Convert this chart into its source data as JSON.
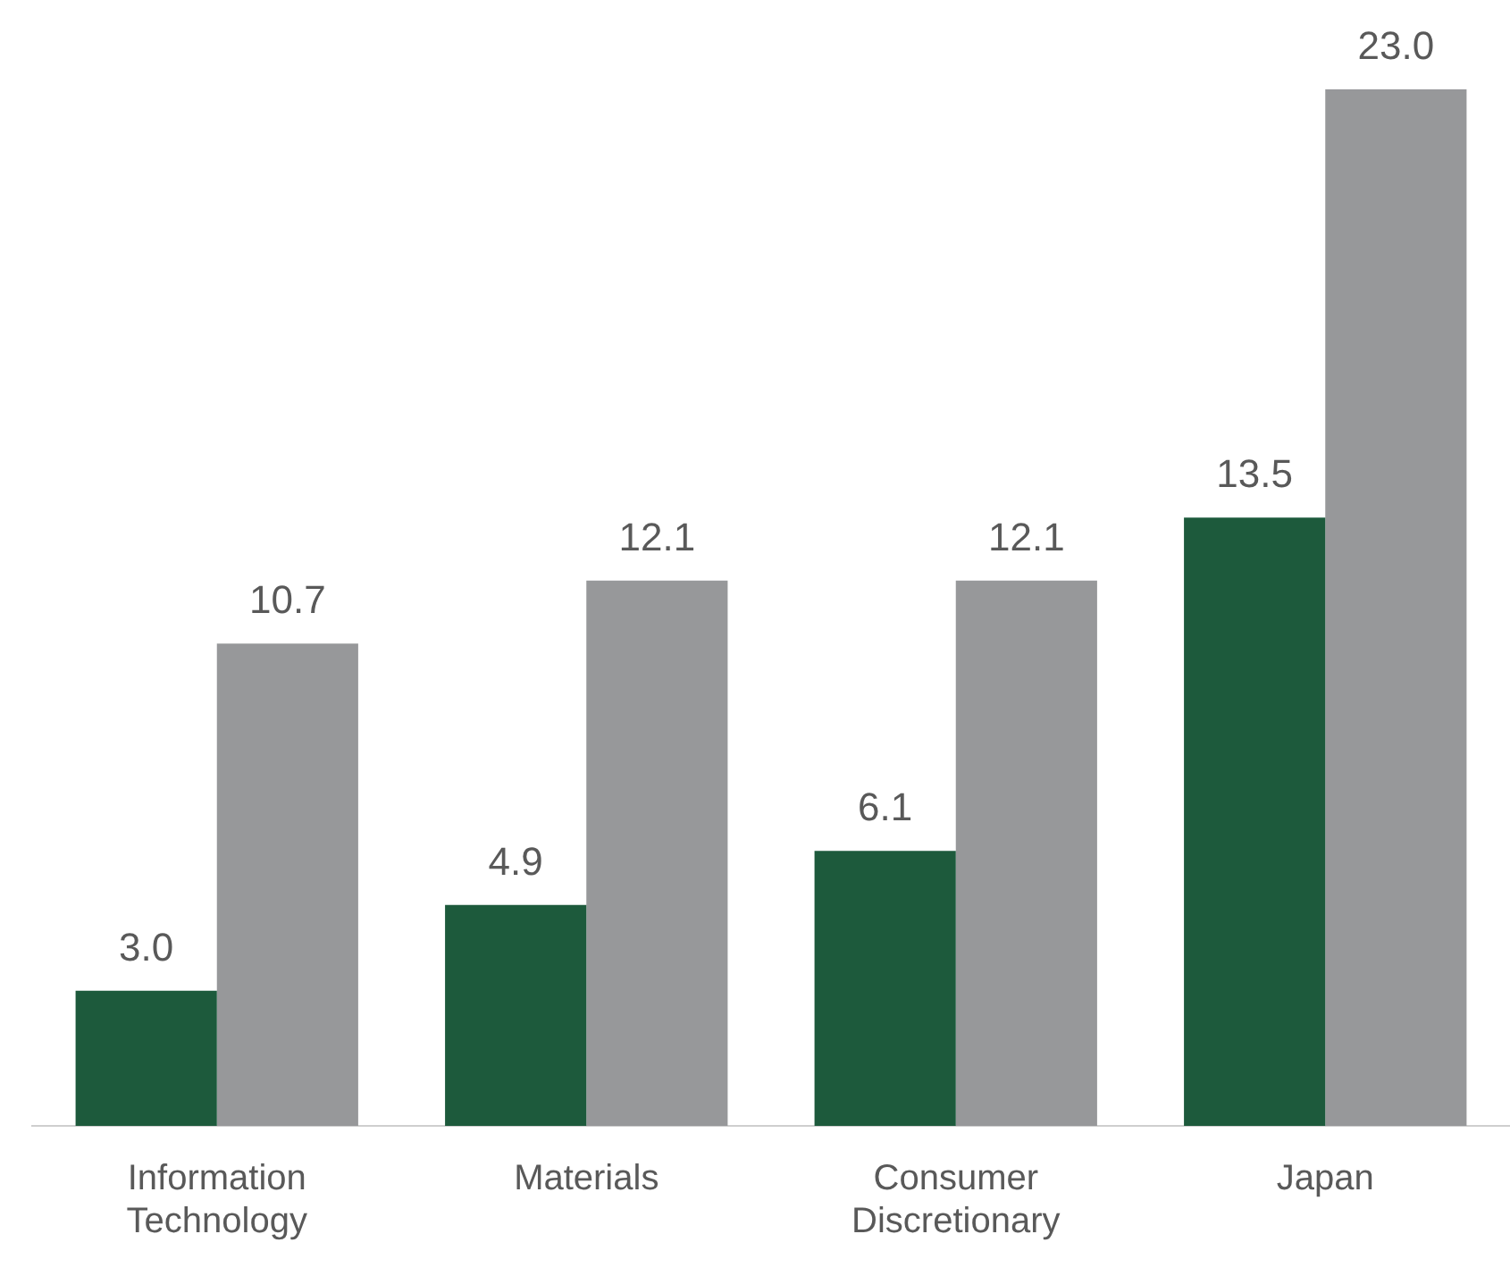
{
  "chart_data": {
    "type": "bar",
    "categories": [
      "Information Technology",
      "Materials",
      "Consumer Discretionary",
      "Japan"
    ],
    "series": [
      {
        "color": "#1d5a3c",
        "values": [
          3.0,
          4.9,
          6.1,
          13.5
        ],
        "value_labels": [
          "3.0",
          "4.9",
          "6.1",
          "13.5"
        ]
      },
      {
        "color": "#97989a",
        "values": [
          10.7,
          12.1,
          12.1,
          23.0
        ],
        "value_labels": [
          "10.7",
          "12.1",
          "12.1",
          "23.0"
        ]
      }
    ],
    "grid": false,
    "legend": false
  }
}
